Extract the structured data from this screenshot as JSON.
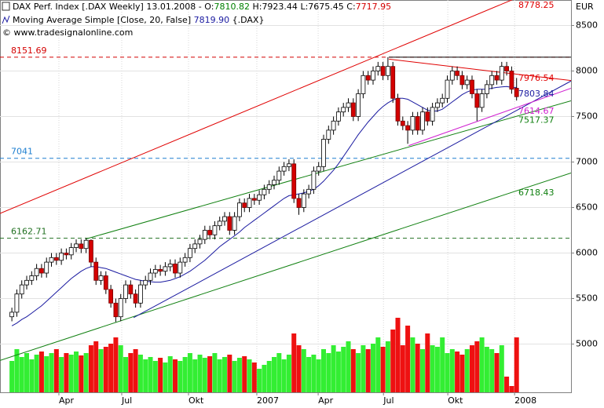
{
  "chart_data": {
    "type": "candlestick",
    "title": "DAX Perf. Index [.DAX Weekly] 13.01.2008 -",
    "ohlc_labels": [
      "O:",
      "H:",
      "L:",
      "C:"
    ],
    "copyright": "© www.tradesignalonline.com",
    "y_unit": "EUR",
    "xlim": [
      -2.4,
      113
    ],
    "xticks": [
      {
        "value": 9.5,
        "label": "Apr"
      },
      {
        "value": 22.2,
        "label": "Jul"
      },
      {
        "value": 35.7,
        "label": "Okt"
      },
      {
        "value": 49.5,
        "label": "2007"
      },
      {
        "value": 61.9,
        "label": "Apr"
      },
      {
        "value": 75.1,
        "label": "Jul"
      },
      {
        "value": 88.1,
        "label": "Okt"
      },
      {
        "value": 101.6,
        "label": "2008"
      }
    ],
    "ylim": [
      4470,
      8780
    ],
    "yticks": [
      5000,
      5500,
      6000,
      6500,
      7000,
      7500,
      8000,
      8500
    ],
    "grid": true,
    "up_color": "#ffffff",
    "down_color": "#d40000",
    "open": [
      5300,
      5350,
      5550,
      5650,
      5700,
      5750,
      5830,
      5780,
      5900,
      5950,
      5920,
      6000,
      5980,
      6060,
      6100,
      6050,
      6140,
      5900,
      5700,
      5750,
      5600,
      5450,
      5300,
      5500,
      5650,
      5550,
      5450,
      5650,
      5700,
      5780,
      5820,
      5800,
      5850,
      5880,
      5780,
      5900,
      5950,
      6050,
      6100,
      6150,
      6250,
      6200,
      6300,
      6350,
      6400,
      6250,
      6400,
      6550,
      6500,
      6600,
      6580,
      6640,
      6700,
      6750,
      6800,
      6900,
      6950,
      6980,
      6600,
      6500,
      6650,
      6700,
      6900,
      6950,
      7250,
      7350,
      7450,
      7550,
      7600,
      7650,
      7500,
      7750,
      7950,
      7900,
      8000,
      8050,
      7950,
      8050,
      7700,
      7450,
      7400,
      7350,
      7500,
      7350,
      7550,
      7450,
      7600,
      7650,
      7700,
      7900,
      8000,
      7950,
      7850,
      7900,
      7750,
      7600,
      7750,
      7850,
      7950,
      7900,
      8050,
      8000,
      7810.82
    ],
    "high": [
      5400,
      5600,
      5700,
      5750,
      5800,
      5880,
      5880,
      5950,
      6000,
      6000,
      6050,
      6050,
      6110,
      6150,
      6150,
      6162.71,
      6150,
      5950,
      5800,
      5800,
      5650,
      5500,
      5550,
      5700,
      5700,
      5600,
      5700,
      5750,
      5830,
      5870,
      5870,
      5900,
      5930,
      5930,
      5950,
      6000,
      6100,
      6150,
      6200,
      6300,
      6300,
      6350,
      6400,
      6450,
      6450,
      6450,
      6600,
      6600,
      6650,
      6650,
      6690,
      6750,
      6800,
      6850,
      6950,
      7000,
      7030,
      7030,
      6650,
      6700,
      6750,
      6950,
      7000,
      7300,
      7400,
      7500,
      7600,
      7650,
      7700,
      7700,
      7800,
      8000,
      8000,
      8050,
      8100,
      8100,
      8151.69,
      8100,
      7750,
      7500,
      7450,
      7550,
      7550,
      7600,
      7600,
      7650,
      7700,
      7750,
      7950,
      8050,
      8050,
      8000,
      7950,
      7950,
      7800,
      7800,
      7900,
      8000,
      8000,
      8100,
      8100,
      8050,
      7923.44
    ],
    "low": [
      5250,
      5300,
      5500,
      5600,
      5650,
      5700,
      5730,
      5730,
      5850,
      5870,
      5870,
      5930,
      5930,
      6010,
      6000,
      6000,
      5850,
      5650,
      5650,
      5550,
      5400,
      5243,
      5250,
      5450,
      5500,
      5400,
      5400,
      5600,
      5650,
      5730,
      5750,
      5750,
      5800,
      5730,
      5730,
      5850,
      5900,
      6000,
      6050,
      6100,
      6150,
      6150,
      6250,
      6300,
      6200,
      6200,
      6350,
      6450,
      6450,
      6530,
      6530,
      6590,
      6650,
      6700,
      6750,
      6850,
      6900,
      6550,
      6420,
      6450,
      6600,
      6650,
      6850,
      6900,
      7200,
      7300,
      7400,
      7500,
      7550,
      7450,
      7450,
      7700,
      7850,
      7850,
      7950,
      7900,
      7900,
      7650,
      7400,
      7350,
      7200,
      7300,
      7300,
      7300,
      7400,
      7400,
      7550,
      7600,
      7650,
      7850,
      7900,
      7800,
      7800,
      7700,
      7450,
      7550,
      7700,
      7800,
      7850,
      7850,
      7950,
      7750,
      7675.45
    ],
    "close": [
      5350,
      5550,
      5650,
      5700,
      5750,
      5830,
      5780,
      5900,
      5950,
      5920,
      6000,
      5980,
      6060,
      6100,
      6050,
      6140,
      5900,
      5700,
      5750,
      5600,
      5450,
      5300,
      5500,
      5650,
      5550,
      5450,
      5650,
      5700,
      5780,
      5820,
      5800,
      5850,
      5880,
      5780,
      5900,
      5950,
      6050,
      6100,
      6150,
      6250,
      6200,
      6300,
      6350,
      6400,
      6250,
      6400,
      6550,
      6500,
      6600,
      6580,
      6640,
      6700,
      6750,
      6800,
      6900,
      6950,
      6980,
      6600,
      6500,
      6650,
      6700,
      6900,
      6950,
      7250,
      7350,
      7450,
      7550,
      7600,
      7650,
      7500,
      7750,
      7950,
      7900,
      8000,
      8050,
      7950,
      8050,
      7700,
      7450,
      7400,
      7350,
      7500,
      7350,
      7550,
      7450,
      7600,
      7650,
      7700,
      7900,
      8000,
      7950,
      7850,
      7900,
      7750,
      7600,
      7750,
      7850,
      7950,
      7900,
      8050,
      8000,
      7800,
      7717.95
    ],
    "ma": {
      "name": "Moving Average Simple [Close, 20, False]",
      "symbol": "{.DAX}",
      "color": "#1a1aa0",
      "last_label": "7819.90",
      "values": [
        5200,
        5230,
        5270,
        5300,
        5340,
        5380,
        5420,
        5470,
        5520,
        5570,
        5620,
        5670,
        5720,
        5760,
        5800,
        5830,
        5850,
        5850,
        5840,
        5830,
        5810,
        5790,
        5770,
        5750,
        5730,
        5710,
        5700,
        5690,
        5685,
        5680,
        5680,
        5690,
        5700,
        5720,
        5740,
        5770,
        5800,
        5840,
        5880,
        5920,
        5970,
        6020,
        6070,
        6110,
        6150,
        6190,
        6230,
        6280,
        6320,
        6360,
        6400,
        6440,
        6480,
        6520,
        6560,
        6600,
        6630,
        6640,
        6650,
        6660,
        6680,
        6700,
        6740,
        6790,
        6850,
        6910,
        6980,
        7060,
        7140,
        7220,
        7300,
        7370,
        7440,
        7500,
        7560,
        7610,
        7650,
        7680,
        7700,
        7700,
        7690,
        7660,
        7630,
        7600,
        7570,
        7560,
        7560,
        7580,
        7620,
        7660,
        7700,
        7740,
        7770,
        7790,
        7800,
        7800,
        7800,
        7810,
        7820,
        7825,
        7830,
        7820,
        7819.9
      ]
    },
    "volume": {
      "vlim": [
        0,
        100
      ],
      "up_color": "#33ee33",
      "down_color": "#ee1111",
      "values": [
        40,
        55,
        45,
        50,
        42,
        48,
        52,
        46,
        50,
        55,
        45,
        50,
        48,
        52,
        47,
        50,
        60,
        65,
        55,
        58,
        62,
        70,
        60,
        45,
        50,
        55,
        48,
        42,
        45,
        40,
        44,
        38,
        46,
        42,
        40,
        45,
        50,
        42,
        48,
        44,
        46,
        50,
        42,
        45,
        48,
        40,
        44,
        46,
        42,
        38,
        30,
        35,
        40,
        45,
        50,
        42,
        48,
        75,
        60,
        55,
        45,
        48,
        42,
        55,
        50,
        60,
        52,
        58,
        65,
        55,
        50,
        60,
        55,
        62,
        70,
        58,
        65,
        80,
        95,
        60,
        85,
        70,
        62,
        55,
        75,
        60,
        58,
        70,
        50,
        55,
        52,
        48,
        55,
        60,
        65,
        70,
        58,
        55,
        50,
        60,
        20,
        8,
        70
      ]
    },
    "levels": [
      {
        "value": 8151.69,
        "color": "#d40000"
      },
      {
        "value": 7041,
        "color": "#1e7fd0"
      },
      {
        "value": 6162.71,
        "color": "#207020"
      }
    ],
    "trendlines": [
      {
        "x": [
          -2.4,
          113
        ],
        "y": [
          6435,
          9052
        ],
        "color": "#e00000",
        "label": 8778.25
      },
      {
        "x": [
          -2.4,
          113
        ],
        "y": [
          4820,
          6880
        ],
        "color": "#108010",
        "label": 6718.43
      },
      {
        "x": [
          15,
          113
        ],
        "y": [
          6155,
          7673
        ],
        "color": "#108010",
        "label": 7517.37
      },
      {
        "x": [
          24.6,
          113
        ],
        "y": [
          5290,
          7890
        ],
        "color": "#1a1aa0",
        "label": 7803.84
      },
      {
        "x": [
          80.2,
          113
        ],
        "y": [
          7180,
          7810
        ],
        "color": "#d020d0",
        "label": 7614.67
      },
      {
        "x": [
          76.2,
          113
        ],
        "y": [
          8130,
          7895
        ],
        "color": "#e00000",
        "label": 7976.54
      },
      {
        "x": [
          76.2,
          113
        ],
        "y": [
          8151.69,
          8151.69
        ],
        "color": "#000000"
      }
    ]
  }
}
